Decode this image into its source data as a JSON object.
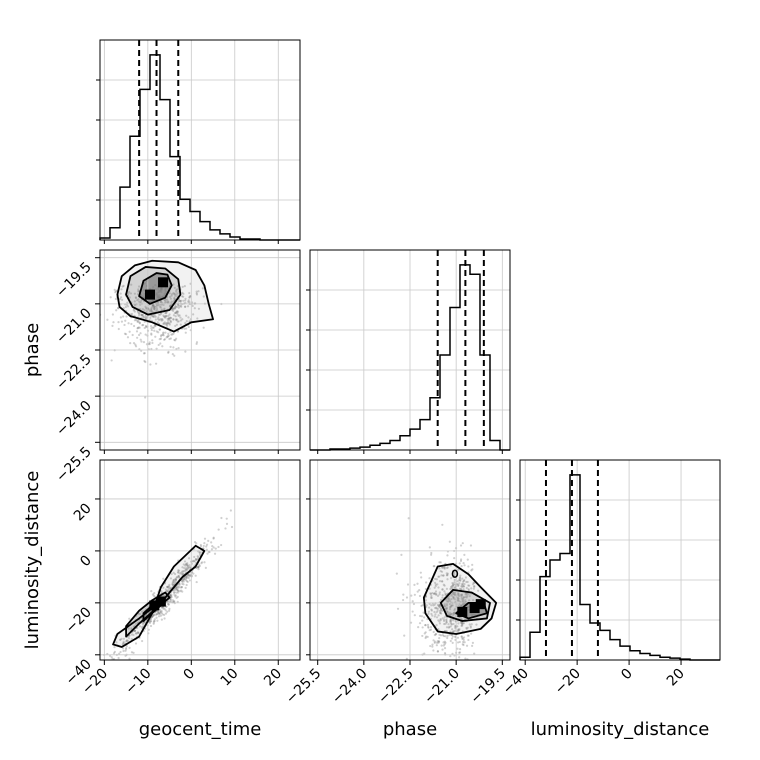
{
  "chart_data": {
    "type": "corner",
    "parameters": [
      "geocent_time",
      "phase",
      "luminosity_distance"
    ],
    "ranges": {
      "geocent_time": [
        -21,
        25
      ],
      "phase": [
        -25.75,
        -19.25
      ],
      "luminosity_distance": [
        -42,
        35
      ]
    },
    "ticks": {
      "geocent_time": [
        -20,
        -10,
        0,
        10,
        20
      ],
      "phase": [
        -25.5,
        -24.0,
        -22.5,
        -21.0,
        -19.5
      ],
      "luminosity_distance": [
        -40,
        -20,
        0,
        20
      ]
    },
    "tick_labels": {
      "geocent_time": [
        "−20",
        "−10",
        "0",
        "10",
        "20"
      ],
      "phase": [
        "−25.5",
        "−24.0",
        "−22.5",
        "−21.0",
        "−19.5"
      ],
      "luminosity_distance": [
        "−40",
        "−20",
        "0",
        "20"
      ]
    },
    "quantiles": {
      "geocent_time": [
        -12,
        -8,
        -3
      ],
      "phase": [
        -21.6,
        -20.7,
        -20.1
      ],
      "luminosity_distance": [
        -32,
        -22,
        -12
      ]
    },
    "histograms": {
      "geocent_time": {
        "edges": [
          -21,
          -18.7,
          -16.4,
          -14.1,
          -11.8,
          -9.5,
          -7.2,
          -4.9,
          -2.6,
          -0.3,
          2.0,
          4.3,
          6.6,
          8.9,
          11.2,
          13.5,
          15.8,
          18.1,
          20.4,
          22.7,
          25
        ],
        "counts": [
          2,
          12,
          52,
          102,
          148,
          182,
          138,
          82,
          40,
          28,
          18,
          10,
          6,
          3,
          1,
          1,
          0,
          0,
          0,
          0
        ]
      },
      "phase": {
        "edges": [
          -25.75,
          -25.425,
          -25.1,
          -24.775,
          -24.45,
          -24.125,
          -23.8,
          -23.475,
          -23.15,
          -22.825,
          -22.5,
          -22.175,
          -21.85,
          -21.525,
          -21.2,
          -20.875,
          -20.55,
          -20.225,
          -19.9,
          -19.575,
          -19.25
        ],
        "counts": [
          0,
          0,
          1,
          1,
          2,
          3,
          5,
          7,
          10,
          15,
          22,
          32,
          55,
          100,
          150,
          195,
          185,
          100,
          10,
          0
        ]
      },
      "luminosity_distance": {
        "edges": [
          -42,
          -38.15,
          -34.3,
          -30.45,
          -26.6,
          -22.75,
          -18.9,
          -15.05,
          -11.2,
          -7.35,
          -3.5,
          0.35,
          4.2,
          8.05,
          11.9,
          15.75,
          19.6,
          23.45,
          27.3,
          31.15,
          35
        ],
        "counts": [
          3,
          30,
          90,
          108,
          115,
          200,
          60,
          40,
          32,
          22,
          15,
          10,
          7,
          5,
          3,
          2,
          1,
          0,
          0,
          0
        ]
      }
    },
    "pairs": [
      {
        "x": "geocent_time",
        "y": "phase",
        "density_center": [
          -8,
          -20.6
        ],
        "hotspots": [
          [
            -9.5,
            -20.7
          ],
          [
            -6.5,
            -20.3
          ]
        ],
        "contours": [
          [
            [
              -17,
              -20.7
            ],
            [
              -16,
              -20.1
            ],
            [
              -13,
              -19.75
            ],
            [
              -9,
              -19.6
            ],
            [
              -3,
              -19.65
            ],
            [
              1,
              -19.9
            ],
            [
              3,
              -20.4
            ],
            [
              4,
              -21.0
            ],
            [
              5,
              -21.5
            ],
            [
              0,
              -21.6
            ],
            [
              -4,
              -21.9
            ],
            [
              -9,
              -21.6
            ],
            [
              -14,
              -21.4
            ],
            [
              -16.5,
              -21.1
            ]
          ],
          [
            [
              -15,
              -20.7
            ],
            [
              -14,
              -20.1
            ],
            [
              -10.5,
              -19.8
            ],
            [
              -6,
              -19.85
            ],
            [
              -3,
              -20.2
            ],
            [
              -2.5,
              -20.7
            ],
            [
              -5,
              -21.2
            ],
            [
              -10,
              -21.35
            ],
            [
              -13.5,
              -21.1
            ]
          ],
          [
            [
              -12,
              -20.75
            ],
            [
              -11,
              -20.25
            ],
            [
              -8,
              -20.0
            ],
            [
              -5.5,
              -20.05
            ],
            [
              -4.5,
              -20.4
            ],
            [
              -6,
              -20.8
            ],
            [
              -9.5,
              -21.0
            ]
          ]
        ]
      },
      {
        "x": "geocent_time",
        "y": "luminosity_distance",
        "density_center": [
          -6,
          -18
        ],
        "hotspots": [
          [
            -8.5,
            -21
          ],
          [
            -7,
            -19.5
          ]
        ],
        "contours": [
          [
            [
              -18,
              -36
            ],
            [
              -17,
              -32
            ],
            [
              -12,
              -26
            ],
            [
              -6,
              -18
            ],
            [
              -2,
              -10
            ],
            [
              1,
              -6
            ],
            [
              3,
              0
            ],
            [
              1,
              2
            ],
            [
              -4,
              -6
            ],
            [
              -7,
              -14
            ],
            [
              -9,
              -24
            ],
            [
              -12,
              -33
            ],
            [
              -16,
              -37
            ]
          ],
          [
            [
              -15,
              -33
            ],
            [
              -12,
              -28
            ],
            [
              -8,
              -22
            ],
            [
              -5,
              -18
            ],
            [
              -6,
              -16
            ],
            [
              -9,
              -19
            ],
            [
              -12,
              -23
            ],
            [
              -15,
              -29
            ]
          ],
          [
            [
              -11,
              -27
            ],
            [
              -9,
              -24
            ],
            [
              -7,
              -21
            ],
            [
              -7,
              -20
            ],
            [
              -9,
              -21
            ],
            [
              -11,
              -24
            ]
          ]
        ]
      },
      {
        "x": "phase",
        "y": "luminosity_distance",
        "density_center": [
          -20.6,
          -22
        ],
        "hotspots": [
          [
            -20.2,
            -20.5
          ],
          [
            -20.4,
            -22
          ],
          [
            -20.8,
            -23.5
          ]
        ],
        "contours": [
          [
            [
              -21.9,
              -14
            ],
            [
              -21.6,
              -6
            ],
            [
              -21.1,
              -5
            ],
            [
              -20.6,
              -9
            ],
            [
              -20.2,
              -14
            ],
            [
              -19.7,
              -20
            ],
            [
              -19.85,
              -26
            ],
            [
              -20.2,
              -30
            ],
            [
              -21.0,
              -32
            ],
            [
              -21.6,
              -31
            ],
            [
              -22.0,
              -24
            ],
            [
              -22.05,
              -18
            ]
          ],
          [
            [
              -21.5,
              -20
            ],
            [
              -21.1,
              -15
            ],
            [
              -20.5,
              -16
            ],
            [
              -19.9,
              -20
            ],
            [
              -20.0,
              -26
            ],
            [
              -20.8,
              -27
            ],
            [
              -21.3,
              -25
            ]
          ],
          [
            [
              -21.0,
              -24
            ],
            [
              -20.6,
              -20
            ],
            [
              -20.1,
              -20
            ],
            [
              -20.0,
              -24
            ],
            [
              -20.6,
              -26
            ]
          ]
        ],
        "island": [
          -21.04,
          -8.8
        ]
      }
    ]
  }
}
